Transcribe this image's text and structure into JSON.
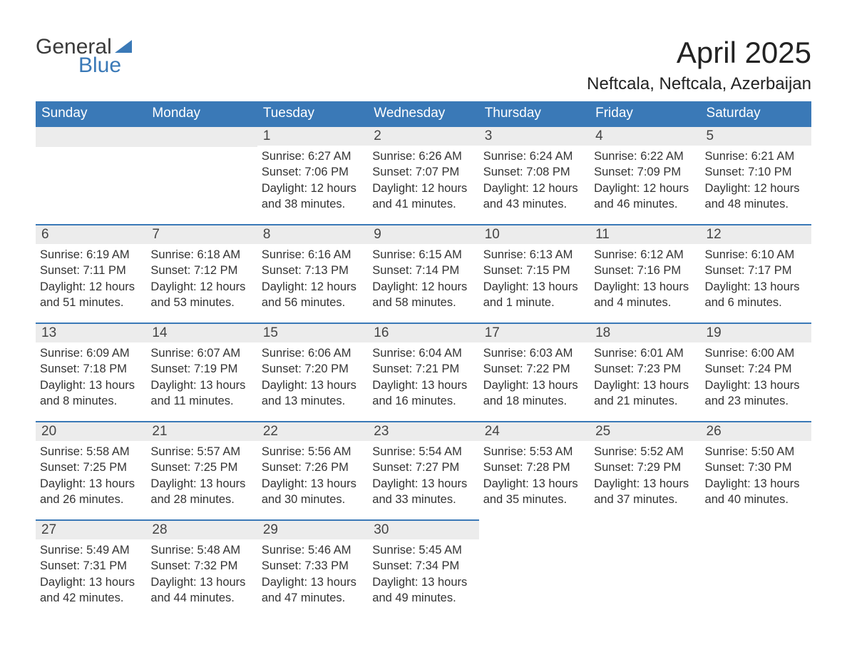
{
  "brand": {
    "word1": "General",
    "word2": "Blue",
    "accent_color": "#3a79b7"
  },
  "title": "April 2025",
  "location": "Neftcala, Neftcala, Azerbaijan",
  "header_bg": "#3a79b7",
  "header_text_color": "#ffffff",
  "daynum_bg": "#ececec",
  "text_color": "#333333",
  "weekdays": [
    "Sunday",
    "Monday",
    "Tuesday",
    "Wednesday",
    "Thursday",
    "Friday",
    "Saturday"
  ],
  "weeks": [
    [
      {
        "empty": true
      },
      {
        "empty": true
      },
      {
        "num": "1",
        "sunrise": "Sunrise: 6:27 AM",
        "sunset": "Sunset: 7:06 PM",
        "daylight": "Daylight: 12 hours and 38 minutes."
      },
      {
        "num": "2",
        "sunrise": "Sunrise: 6:26 AM",
        "sunset": "Sunset: 7:07 PM",
        "daylight": "Daylight: 12 hours and 41 minutes."
      },
      {
        "num": "3",
        "sunrise": "Sunrise: 6:24 AM",
        "sunset": "Sunset: 7:08 PM",
        "daylight": "Daylight: 12 hours and 43 minutes."
      },
      {
        "num": "4",
        "sunrise": "Sunrise: 6:22 AM",
        "sunset": "Sunset: 7:09 PM",
        "daylight": "Daylight: 12 hours and 46 minutes."
      },
      {
        "num": "5",
        "sunrise": "Sunrise: 6:21 AM",
        "sunset": "Sunset: 7:10 PM",
        "daylight": "Daylight: 12 hours and 48 minutes."
      }
    ],
    [
      {
        "num": "6",
        "sunrise": "Sunrise: 6:19 AM",
        "sunset": "Sunset: 7:11 PM",
        "daylight": "Daylight: 12 hours and 51 minutes."
      },
      {
        "num": "7",
        "sunrise": "Sunrise: 6:18 AM",
        "sunset": "Sunset: 7:12 PM",
        "daylight": "Daylight: 12 hours and 53 minutes."
      },
      {
        "num": "8",
        "sunrise": "Sunrise: 6:16 AM",
        "sunset": "Sunset: 7:13 PM",
        "daylight": "Daylight: 12 hours and 56 minutes."
      },
      {
        "num": "9",
        "sunrise": "Sunrise: 6:15 AM",
        "sunset": "Sunset: 7:14 PM",
        "daylight": "Daylight: 12 hours and 58 minutes."
      },
      {
        "num": "10",
        "sunrise": "Sunrise: 6:13 AM",
        "sunset": "Sunset: 7:15 PM",
        "daylight": "Daylight: 13 hours and 1 minute."
      },
      {
        "num": "11",
        "sunrise": "Sunrise: 6:12 AM",
        "sunset": "Sunset: 7:16 PM",
        "daylight": "Daylight: 13 hours and 4 minutes."
      },
      {
        "num": "12",
        "sunrise": "Sunrise: 6:10 AM",
        "sunset": "Sunset: 7:17 PM",
        "daylight": "Daylight: 13 hours and 6 minutes."
      }
    ],
    [
      {
        "num": "13",
        "sunrise": "Sunrise: 6:09 AM",
        "sunset": "Sunset: 7:18 PM",
        "daylight": "Daylight: 13 hours and 8 minutes."
      },
      {
        "num": "14",
        "sunrise": "Sunrise: 6:07 AM",
        "sunset": "Sunset: 7:19 PM",
        "daylight": "Daylight: 13 hours and 11 minutes."
      },
      {
        "num": "15",
        "sunrise": "Sunrise: 6:06 AM",
        "sunset": "Sunset: 7:20 PM",
        "daylight": "Daylight: 13 hours and 13 minutes."
      },
      {
        "num": "16",
        "sunrise": "Sunrise: 6:04 AM",
        "sunset": "Sunset: 7:21 PM",
        "daylight": "Daylight: 13 hours and 16 minutes."
      },
      {
        "num": "17",
        "sunrise": "Sunrise: 6:03 AM",
        "sunset": "Sunset: 7:22 PM",
        "daylight": "Daylight: 13 hours and 18 minutes."
      },
      {
        "num": "18",
        "sunrise": "Sunrise: 6:01 AM",
        "sunset": "Sunset: 7:23 PM",
        "daylight": "Daylight: 13 hours and 21 minutes."
      },
      {
        "num": "19",
        "sunrise": "Sunrise: 6:00 AM",
        "sunset": "Sunset: 7:24 PM",
        "daylight": "Daylight: 13 hours and 23 minutes."
      }
    ],
    [
      {
        "num": "20",
        "sunrise": "Sunrise: 5:58 AM",
        "sunset": "Sunset: 7:25 PM",
        "daylight": "Daylight: 13 hours and 26 minutes."
      },
      {
        "num": "21",
        "sunrise": "Sunrise: 5:57 AM",
        "sunset": "Sunset: 7:25 PM",
        "daylight": "Daylight: 13 hours and 28 minutes."
      },
      {
        "num": "22",
        "sunrise": "Sunrise: 5:56 AM",
        "sunset": "Sunset: 7:26 PM",
        "daylight": "Daylight: 13 hours and 30 minutes."
      },
      {
        "num": "23",
        "sunrise": "Sunrise: 5:54 AM",
        "sunset": "Sunset: 7:27 PM",
        "daylight": "Daylight: 13 hours and 33 minutes."
      },
      {
        "num": "24",
        "sunrise": "Sunrise: 5:53 AM",
        "sunset": "Sunset: 7:28 PM",
        "daylight": "Daylight: 13 hours and 35 minutes."
      },
      {
        "num": "25",
        "sunrise": "Sunrise: 5:52 AM",
        "sunset": "Sunset: 7:29 PM",
        "daylight": "Daylight: 13 hours and 37 minutes."
      },
      {
        "num": "26",
        "sunrise": "Sunrise: 5:50 AM",
        "sunset": "Sunset: 7:30 PM",
        "daylight": "Daylight: 13 hours and 40 minutes."
      }
    ],
    [
      {
        "num": "27",
        "sunrise": "Sunrise: 5:49 AM",
        "sunset": "Sunset: 7:31 PM",
        "daylight": "Daylight: 13 hours and 42 minutes."
      },
      {
        "num": "28",
        "sunrise": "Sunrise: 5:48 AM",
        "sunset": "Sunset: 7:32 PM",
        "daylight": "Daylight: 13 hours and 44 minutes."
      },
      {
        "num": "29",
        "sunrise": "Sunrise: 5:46 AM",
        "sunset": "Sunset: 7:33 PM",
        "daylight": "Daylight: 13 hours and 47 minutes."
      },
      {
        "num": "30",
        "sunrise": "Sunrise: 5:45 AM",
        "sunset": "Sunset: 7:34 PM",
        "daylight": "Daylight: 13 hours and 49 minutes."
      },
      {
        "empty": true,
        "noBar": true
      },
      {
        "empty": true,
        "noBar": true
      },
      {
        "empty": true,
        "noBar": true
      }
    ]
  ]
}
